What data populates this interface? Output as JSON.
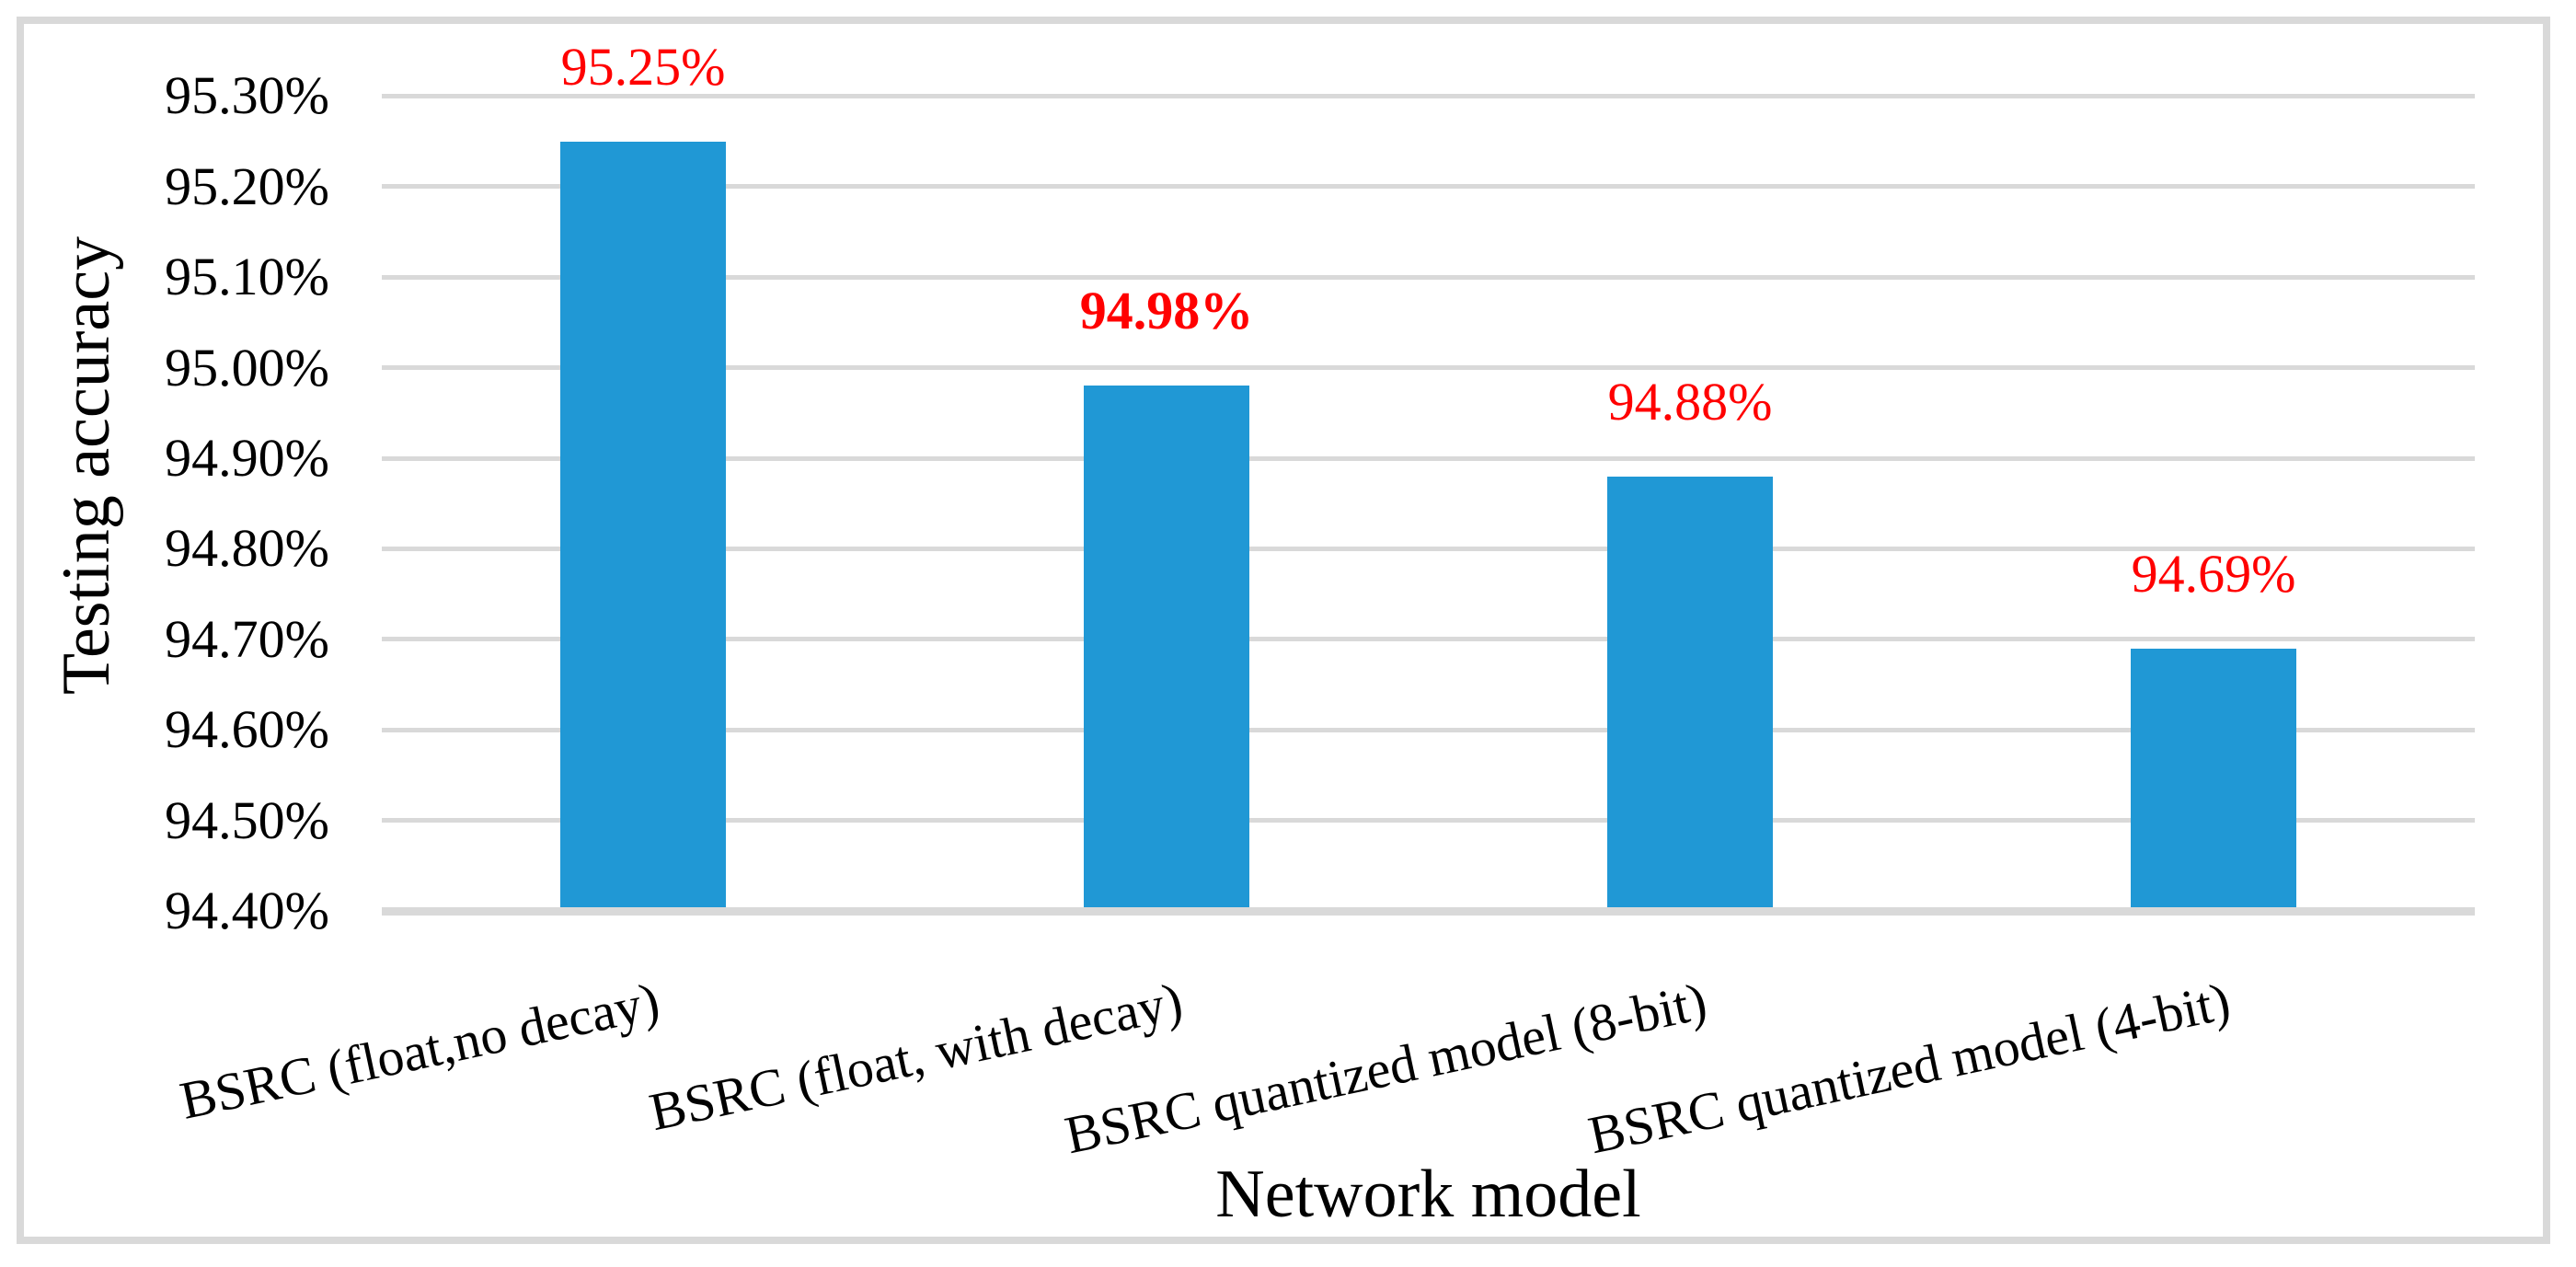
{
  "chart_data": {
    "type": "bar",
    "title": "",
    "xlabel": "Network model",
    "ylabel": "Testing accuracy",
    "categories": [
      "BSRC (float,no decay)",
      "BSRC (float, with decay)",
      "BSRC quantized model (8-bit)",
      "BSRC quantized model (4-bit)"
    ],
    "values": [
      95.25,
      94.98,
      94.88,
      94.69
    ],
    "data_labels": [
      "95.25%",
      "94.98%",
      "94.88%",
      "94.69%"
    ],
    "data_label_bold": [
      false,
      true,
      false,
      false
    ],
    "ytick_labels": [
      "94.40%",
      "94.50%",
      "94.60%",
      "94.70%",
      "94.80%",
      "94.90%",
      "95.00%",
      "95.10%",
      "95.20%",
      "95.30%"
    ],
    "ylim": [
      94.4,
      95.3
    ],
    "ytick_step": 0.1,
    "grid": true,
    "legend": false,
    "colors": {
      "bar": "#2098d5",
      "data_label": "#ff0000",
      "gridline": "#d9d9d9",
      "axis_text": "#000000",
      "frame_border": "#d9d9d9"
    }
  }
}
